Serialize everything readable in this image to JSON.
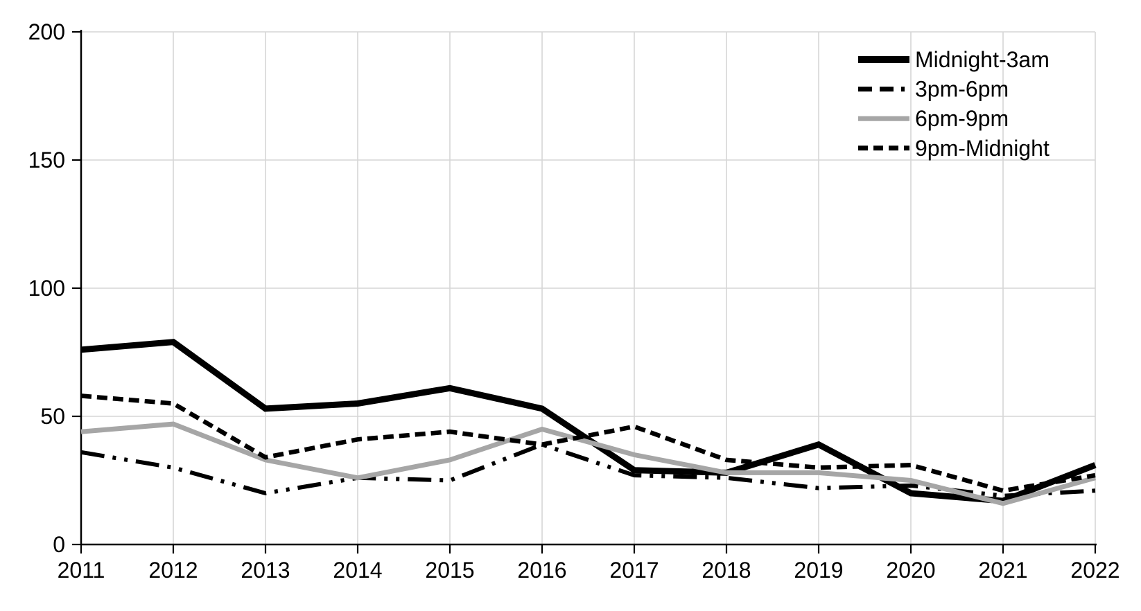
{
  "chart_data": {
    "type": "line",
    "title": "",
    "xlabel": "",
    "ylabel": "",
    "categories": [
      "2011",
      "2012",
      "2013",
      "2014",
      "2015",
      "2016",
      "2017",
      "2018",
      "2019",
      "2020",
      "2021",
      "2022"
    ],
    "y_ticks": [
      "0",
      "50",
      "100",
      "150",
      "200"
    ],
    "y_tick_values": [
      0,
      50,
      100,
      150,
      200
    ],
    "ylim": [
      0,
      200
    ],
    "grid": true,
    "legend_position": "top-right",
    "series": [
      {
        "name": "Midnight-3am",
        "color": "#000000",
        "style": "solid-thick",
        "values": [
          76,
          79,
          53,
          55,
          61,
          53,
          29,
          28,
          39,
          20,
          17,
          31
        ]
      },
      {
        "name": "3pm-6pm",
        "color": "#000000",
        "style": "dash-dot-dot",
        "values": [
          36,
          30,
          20,
          26,
          25,
          39,
          27,
          26,
          22,
          23,
          19,
          21
        ]
      },
      {
        "name": "6pm-9pm",
        "color": "#a6a6a6",
        "style": "solid",
        "values": [
          44,
          47,
          33,
          26,
          33,
          45,
          35,
          28,
          28,
          25,
          16,
          26
        ]
      },
      {
        "name": "9pm-Midnight",
        "color": "#000000",
        "style": "dashed",
        "values": [
          58,
          55,
          34,
          41,
          44,
          39,
          46,
          33,
          30,
          31,
          21,
          27
        ]
      }
    ]
  },
  "colors": {
    "background": "#ffffff",
    "gridline": "#d6d6d6",
    "axis": "#000000",
    "text": "#000000"
  }
}
